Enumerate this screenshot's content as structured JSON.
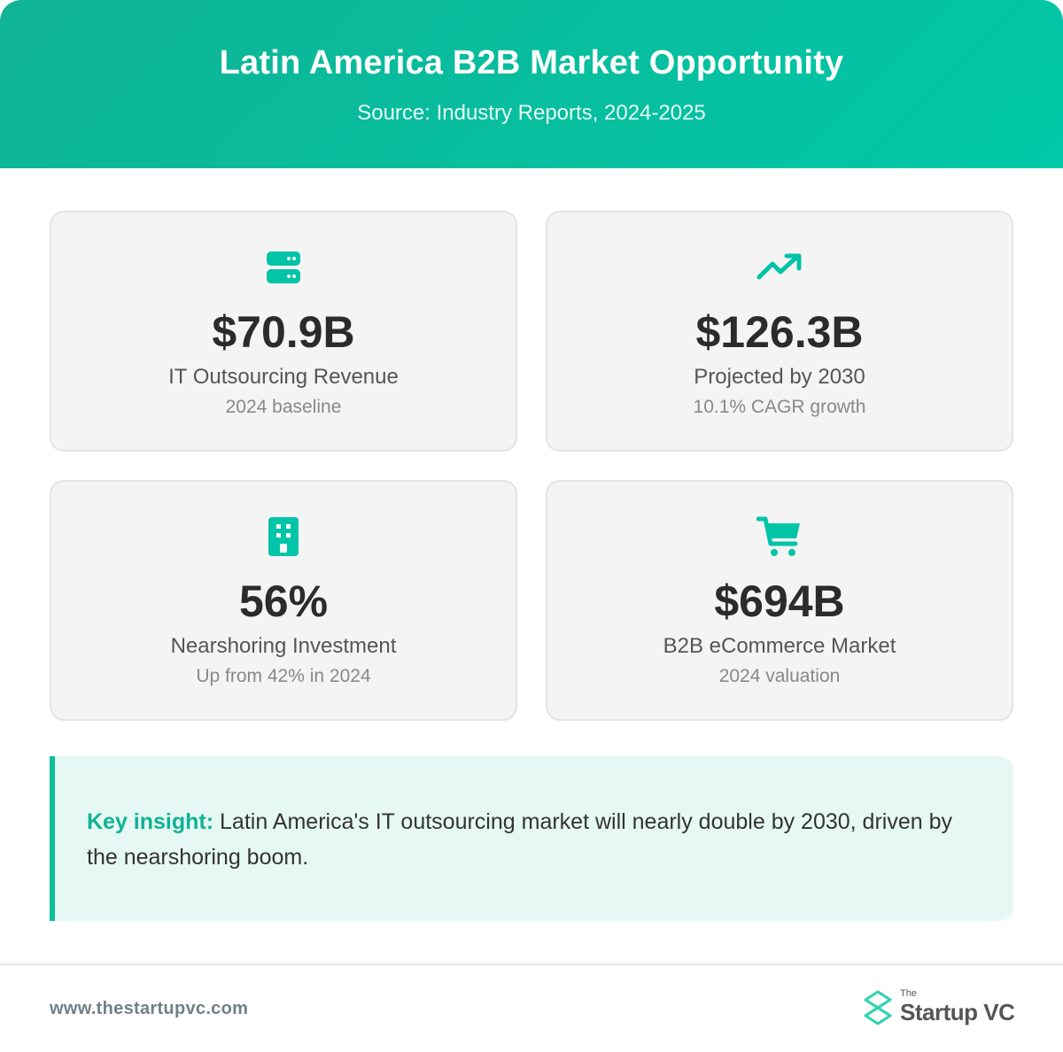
{
  "header": {
    "title": "Latin America B2B Market Opportunity",
    "subtitle": "Source: Industry Reports, 2024-2025"
  },
  "cards": [
    {
      "icon": "server-icon",
      "value": "$70.9B",
      "label": "IT Outsourcing Revenue",
      "sub": "2024 baseline"
    },
    {
      "icon": "trending-up-icon",
      "value": "$126.3B",
      "label": "Projected by 2030",
      "sub": "10.1% CAGR growth"
    },
    {
      "icon": "building-icon",
      "value": "56%",
      "label": "Nearshoring Investment",
      "sub": "Up from 42% in 2024"
    },
    {
      "icon": "shopping-cart-icon",
      "value": "$694B",
      "label": "B2B eCommerce Market",
      "sub": "2024 valuation"
    }
  ],
  "insight": {
    "key": "Key insight:",
    "text": "Latin America's IT outsourcing market will nearly double by 2030, driven by the nearshoring boom."
  },
  "footer": {
    "url": "www.thestartupvc.com",
    "logo_small": "The",
    "logo_name": "Startup VC"
  },
  "colors": {
    "accent": "#00C4A7",
    "header_start": "#0FB394",
    "header_end": "#00C8A8",
    "card_bg": "#F4F4F4",
    "insight_bg": "#E6F8F3",
    "value_text": "#2B2B2B"
  }
}
